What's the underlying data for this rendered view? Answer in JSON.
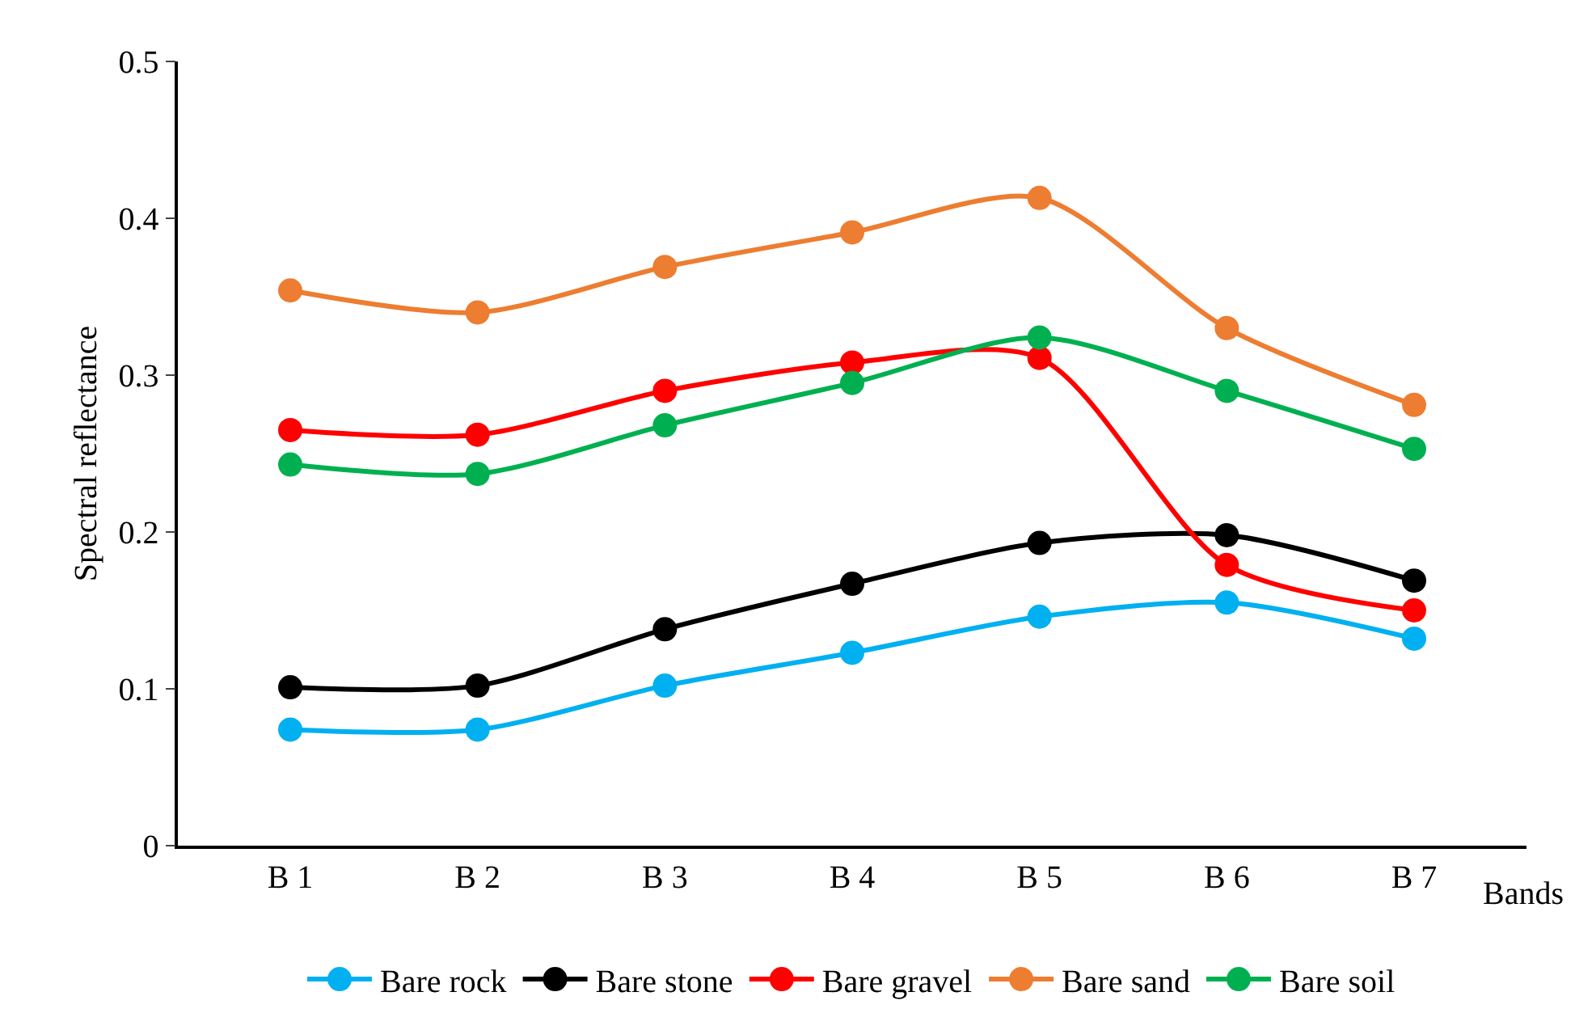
{
  "chart_data": {
    "type": "line",
    "xlabel": "Bands",
    "ylabel": "Spectral reflectance",
    "categories": [
      "B 1",
      "B 2",
      "B 3",
      "B 4",
      "B 5",
      "B 6",
      "B 7"
    ],
    "series": [
      {
        "name": "Bare rock",
        "color": "#00b0f0",
        "values": [
          0.074,
          0.074,
          0.102,
          0.123,
          0.146,
          0.155,
          0.132
        ]
      },
      {
        "name": "Bare stone",
        "color": "#000000",
        "values": [
          0.101,
          0.102,
          0.138,
          0.167,
          0.193,
          0.198,
          0.169
        ]
      },
      {
        "name": "Bare gravel",
        "color": "#ff0000",
        "values": [
          0.265,
          0.262,
          0.29,
          0.308,
          0.311,
          0.179,
          0.15
        ]
      },
      {
        "name": "Bare sand",
        "color": "#ed7d31",
        "values": [
          0.354,
          0.34,
          0.369,
          0.391,
          0.413,
          0.33,
          0.281
        ]
      },
      {
        "name": "Bare soil",
        "color": "#00b050",
        "values": [
          0.243,
          0.237,
          0.268,
          0.295,
          0.324,
          0.29,
          0.253
        ]
      }
    ],
    "ylim": [
      0,
      0.5
    ],
    "yticks": [
      0,
      0.1,
      0.2,
      0.3,
      0.4,
      0.5
    ],
    "legend": "bottom",
    "marker": "circle",
    "line_style": "solid"
  }
}
